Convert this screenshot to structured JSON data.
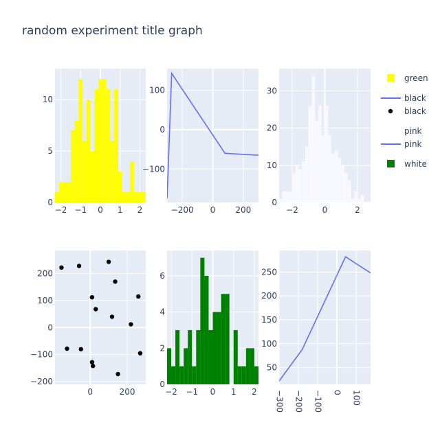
{
  "title": "random experiment title graph",
  "colors": {
    "plot_bg": "#e5ecf6",
    "grid": "#ffffff",
    "text": "#2a3f5f",
    "yellow": "#ffff00",
    "green": "#008000",
    "white_hist": "#f8f8ff",
    "line": "#636efa",
    "black": "#000000"
  },
  "legend": {
    "items": [
      {
        "label": "green",
        "kind": "square",
        "color": "#ffff00"
      },
      {
        "label": "black",
        "kind": "line",
        "color": "#636efa"
      },
      {
        "label": "black",
        "kind": "marker",
        "color": "#000000"
      },
      {
        "label": "pink",
        "kind": "none",
        "color": "#f8f8ff"
      },
      {
        "label": "pink",
        "kind": "line",
        "color": "#636efa"
      },
      {
        "label": "white",
        "kind": "square",
        "color": "#008000"
      }
    ]
  },
  "chart_data": [
    {
      "type": "bar",
      "series_name": "green",
      "color": "#ffff00",
      "xlim": [
        -2.3,
        2.3
      ],
      "ylim": [
        0,
        13
      ],
      "xticks": [
        -2,
        -1,
        0,
        1,
        2
      ],
      "yticks": [
        0,
        5,
        10
      ],
      "bins": [
        {
          "x0": -2.3,
          "x1": -2.1,
          "y": 1
        },
        {
          "x0": -2.1,
          "x1": -1.9,
          "y": 2
        },
        {
          "x0": -1.9,
          "x1": -1.7,
          "y": 2
        },
        {
          "x0": -1.7,
          "x1": -1.5,
          "y": 2
        },
        {
          "x0": -1.5,
          "x1": -1.3,
          "y": 7
        },
        {
          "x0": -1.3,
          "x1": -1.1,
          "y": 8
        },
        {
          "x0": -1.1,
          "x1": -0.9,
          "y": 12
        },
        {
          "x0": -0.9,
          "x1": -0.7,
          "y": 6
        },
        {
          "x0": -0.7,
          "x1": -0.5,
          "y": 10
        },
        {
          "x0": -0.5,
          "x1": -0.3,
          "y": 5
        },
        {
          "x0": -0.3,
          "x1": -0.1,
          "y": 11
        },
        {
          "x0": -0.1,
          "x1": 0.1,
          "y": 12
        },
        {
          "x0": 0.1,
          "x1": 0.3,
          "y": 12
        },
        {
          "x0": 0.3,
          "x1": 0.5,
          "y": 11
        },
        {
          "x0": 0.5,
          "x1": 0.7,
          "y": 6
        },
        {
          "x0": 0.7,
          "x1": 0.9,
          "y": 11
        },
        {
          "x0": 0.9,
          "x1": 1.1,
          "y": 3
        },
        {
          "x0": 1.1,
          "x1": 1.3,
          "y": 1
        },
        {
          "x0": 1.3,
          "x1": 1.5,
          "y": 1
        },
        {
          "x0": 1.5,
          "x1": 1.7,
          "y": 4
        },
        {
          "x0": 1.7,
          "x1": 1.9,
          "y": 1
        },
        {
          "x0": 1.9,
          "x1": 2.1,
          "y": 1
        },
        {
          "x0": 2.1,
          "x1": 2.3,
          "y": 1
        }
      ]
    },
    {
      "type": "line",
      "series_name": "black",
      "color": "#636efa",
      "xlim": [
        -300,
        300
      ],
      "ylim": [
        -185,
        155
      ],
      "xticks": [
        -200,
        0,
        200
      ],
      "yticks": [
        -100,
        0,
        100
      ],
      "points": [
        [
          -300,
          -175
        ],
        [
          -270,
          143
        ],
        [
          80,
          -60
        ],
        [
          300,
          -65
        ]
      ]
    },
    {
      "type": "bar",
      "series_name": "pink",
      "color": "#f8f8ff",
      "xlim": [
        -2.8,
        2.8
      ],
      "ylim": [
        0,
        36
      ],
      "xticks": [
        -2,
        0,
        2
      ],
      "yticks": [
        0,
        10,
        20,
        30
      ],
      "bins": [
        {
          "x0": -2.8,
          "x1": -2.6,
          "y": 1
        },
        {
          "x0": -2.6,
          "x1": -2.4,
          "y": 3
        },
        {
          "x0": -2.4,
          "x1": -2.2,
          "y": 3
        },
        {
          "x0": -2.2,
          "x1": -2.0,
          "y": 3
        },
        {
          "x0": -2.0,
          "x1": -1.8,
          "y": 8
        },
        {
          "x0": -1.8,
          "x1": -1.6,
          "y": 10
        },
        {
          "x0": -1.6,
          "x1": -1.4,
          "y": 9
        },
        {
          "x0": -1.4,
          "x1": -1.2,
          "y": 11
        },
        {
          "x0": -1.2,
          "x1": -1.0,
          "y": 15
        },
        {
          "x0": -1.0,
          "x1": -0.8,
          "y": 26
        },
        {
          "x0": -0.8,
          "x1": -0.6,
          "y": 34
        },
        {
          "x0": -0.6,
          "x1": -0.4,
          "y": 22
        },
        {
          "x0": -0.4,
          "x1": -0.2,
          "y": 26
        },
        {
          "x0": -0.2,
          "x1": 0.0,
          "y": 18
        },
        {
          "x0": 0.0,
          "x1": 0.2,
          "y": 26
        },
        {
          "x0": 0.2,
          "x1": 0.4,
          "y": 18
        },
        {
          "x0": 0.4,
          "x1": 0.6,
          "y": 13
        },
        {
          "x0": 0.6,
          "x1": 0.8,
          "y": 14
        },
        {
          "x0": 0.8,
          "x1": 1.0,
          "y": 12
        },
        {
          "x0": 1.0,
          "x1": 1.2,
          "y": 10
        },
        {
          "x0": 1.2,
          "x1": 1.4,
          "y": 8
        },
        {
          "x0": 1.4,
          "x1": 1.6,
          "y": 6
        },
        {
          "x0": 1.6,
          "x1": 1.8,
          "y": 1
        },
        {
          "x0": 1.8,
          "x1": 2.0,
          "y": 3
        },
        {
          "x0": 2.0,
          "x1": 2.2,
          "y": 1
        },
        {
          "x0": 2.2,
          "x1": 2.4,
          "y": 2
        }
      ]
    },
    {
      "type": "scatter",
      "series_name": "black",
      "color": "#000000",
      "xlim": [
        -190,
        300
      ],
      "ylim": [
        -210,
        285
      ],
      "xticks": [
        0,
        200
      ],
      "yticks": [
        -200,
        -100,
        0,
        100,
        200
      ],
      "points": [
        [
          -155,
          222
        ],
        [
          -60,
          228
        ],
        [
          100,
          243
        ],
        [
          135,
          170
        ],
        [
          10,
          112
        ],
        [
          30,
          68
        ],
        [
          118,
          40
        ],
        [
          220,
          12
        ],
        [
          260,
          115
        ],
        [
          -125,
          -78
        ],
        [
          -50,
          -80
        ],
        [
          10,
          -128
        ],
        [
          15,
          -142
        ],
        [
          150,
          -172
        ],
        [
          270,
          -95
        ]
      ]
    },
    {
      "type": "bar",
      "series_name": "white",
      "color": "#008000",
      "xlim": [
        -2.2,
        2.2
      ],
      "ylim": [
        0,
        7.4
      ],
      "xticks": [
        -2,
        -1,
        0,
        1,
        2
      ],
      "yticks": [
        0,
        2,
        4,
        6
      ],
      "bins": [
        {
          "x0": -2.2,
          "x1": -2.0,
          "y": 2
        },
        {
          "x0": -2.0,
          "x1": -1.8,
          "y": 1
        },
        {
          "x0": -1.8,
          "x1": -1.6,
          "y": 3
        },
        {
          "x0": -1.6,
          "x1": -1.4,
          "y": 1
        },
        {
          "x0": -1.4,
          "x1": -1.2,
          "y": 2
        },
        {
          "x0": -1.2,
          "x1": -1.0,
          "y": 3
        },
        {
          "x0": -1.0,
          "x1": -0.8,
          "y": 1
        },
        {
          "x0": -0.8,
          "x1": -0.6,
          "y": 3
        },
        {
          "x0": -0.6,
          "x1": -0.4,
          "y": 7
        },
        {
          "x0": -0.4,
          "x1": -0.2,
          "y": 6
        },
        {
          "x0": -0.2,
          "x1": 0.0,
          "y": 3
        },
        {
          "x0": 0.0,
          "x1": 0.2,
          "y": 4
        },
        {
          "x0": 0.2,
          "x1": 0.4,
          "y": 4
        },
        {
          "x0": 0.4,
          "x1": 0.6,
          "y": 5
        },
        {
          "x0": 0.6,
          "x1": 0.8,
          "y": 5
        },
        {
          "x0": 0.8,
          "x1": 1.0,
          "y": 0
        },
        {
          "x0": 1.0,
          "x1": 1.2,
          "y": 3
        },
        {
          "x0": 1.2,
          "x1": 1.4,
          "y": 1
        },
        {
          "x0": 1.4,
          "x1": 1.6,
          "y": 1
        },
        {
          "x0": 1.6,
          "x1": 1.8,
          "y": 2
        },
        {
          "x0": 1.8,
          "x1": 2.0,
          "y": 2
        },
        {
          "x0": 2.0,
          "x1": 2.2,
          "y": 1
        }
      ]
    },
    {
      "type": "line",
      "series_name": "pink",
      "color": "#636efa",
      "xlim": [
        -300,
        175
      ],
      "ylim": [
        15,
        295
      ],
      "xticks": [
        -300,
        -200,
        -100,
        0,
        100
      ],
      "xtick_angle": 90,
      "yticks": [
        50,
        100,
        150,
        200,
        250
      ],
      "points": [
        [
          -300,
          22
        ],
        [
          -180,
          88
        ],
        [
          45,
          282
        ],
        [
          175,
          248
        ]
      ]
    }
  ]
}
